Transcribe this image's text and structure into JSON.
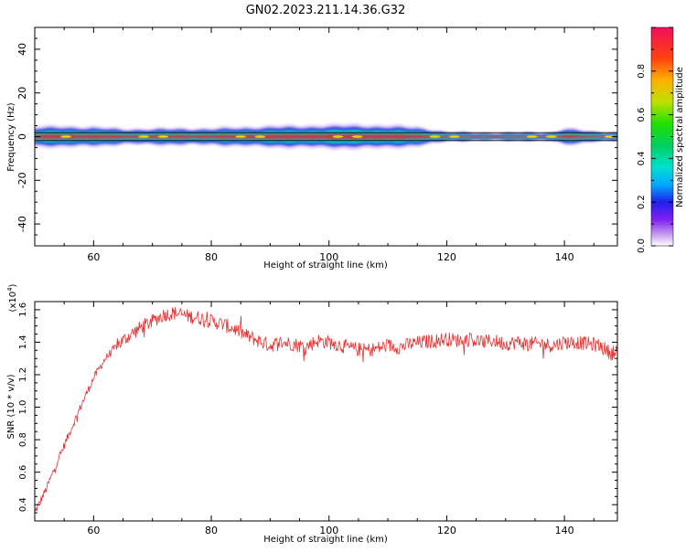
{
  "page_title": "GN02.2023.211.14.36.G32",
  "chart_data": [
    {
      "type": "heatmap",
      "xlabel": "Height of straight line (km)",
      "ylabel": "Frequency (Hz)",
      "xlim": [
        50,
        149
      ],
      "ylim": [
        -50,
        50
      ],
      "x_ticks": [
        60,
        80,
        100,
        120,
        140
      ],
      "y_ticks": [
        -40,
        -20,
        0,
        20,
        40
      ],
      "colorbar": {
        "label": "Normalized spectral amplitude",
        "range": [
          0.0,
          1.0
        ],
        "ticks": [
          "0.0",
          "0.2",
          "0.4",
          "0.6",
          "0.8"
        ],
        "tick_values": [
          0.0,
          0.2,
          0.4,
          0.6,
          0.8
        ]
      },
      "colors": {
        "band_core": "#e8203a",
        "band_mid": "#00d8c0",
        "band_outer": "#2020e0",
        "band_halo": "#c8a8f0",
        "centerline": "#000000"
      },
      "band_halfwidth_hz": {
        "x": [
          50,
          55,
          60,
          65,
          70,
          75,
          80,
          85,
          90,
          95,
          100,
          105,
          110,
          115,
          118,
          120,
          130,
          138,
          140,
          142,
          145,
          149
        ],
        "values": [
          3.5,
          3.8,
          3.5,
          2.8,
          2.9,
          3.0,
          3.0,
          3.4,
          3.8,
          3.9,
          4.2,
          4.3,
          4.0,
          3.5,
          2.5,
          1.5,
          1.2,
          1.5,
          3.0,
          2.5,
          1.8,
          1.5
        ]
      }
    },
    {
      "type": "line",
      "xlabel": "Height of straight line (km)",
      "ylabel": "SNR (10 * v/v)",
      "multiplier": "(x10",
      "multiplier_exp": "4",
      "multiplier_close": ")",
      "xlim": [
        50,
        149
      ],
      "ylim": [
        0.3,
        1.65
      ],
      "x_ticks": [
        60,
        80,
        100,
        120,
        140
      ],
      "y_ticks": [
        "0.4",
        "0.6",
        "0.8",
        "1.0",
        "1.2",
        "1.4",
        "1.6"
      ],
      "y_tick_values": [
        0.4,
        0.6,
        0.8,
        1.0,
        1.2,
        1.4,
        1.6
      ],
      "line_color": "#e83030",
      "series": [
        {
          "x": [
            50,
            52,
            54,
            56,
            58,
            60,
            62,
            64,
            66,
            68,
            70,
            72,
            74,
            76,
            78,
            80,
            82,
            84,
            86,
            88,
            90,
            92,
            94,
            96,
            98,
            100,
            102,
            104,
            106,
            108,
            110,
            112,
            114,
            116,
            118,
            120,
            122,
            124,
            126,
            128,
            130,
            132,
            134,
            136,
            138,
            140,
            142,
            144,
            146,
            148,
            149
          ],
          "values": [
            0.35,
            0.5,
            0.68,
            0.85,
            1.02,
            1.18,
            1.3,
            1.38,
            1.44,
            1.49,
            1.53,
            1.57,
            1.58,
            1.56,
            1.55,
            1.53,
            1.51,
            1.48,
            1.44,
            1.41,
            1.38,
            1.4,
            1.39,
            1.37,
            1.41,
            1.4,
            1.38,
            1.36,
            1.35,
            1.36,
            1.38,
            1.37,
            1.39,
            1.4,
            1.41,
            1.42,
            1.41,
            1.42,
            1.4,
            1.41,
            1.39,
            1.4,
            1.39,
            1.39,
            1.38,
            1.4,
            1.4,
            1.39,
            1.38,
            1.33,
            1.36
          ]
        }
      ]
    }
  ]
}
